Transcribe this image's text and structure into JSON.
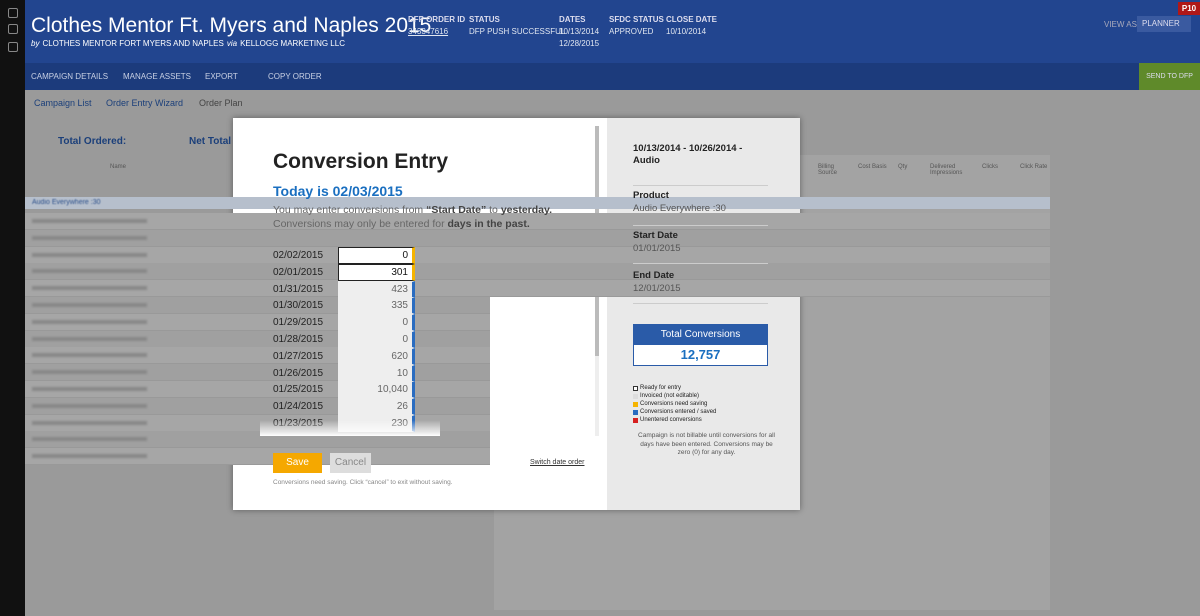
{
  "header": {
    "title": "Clothes Mentor Ft. Myers and Naples 2015",
    "by": "by",
    "org": "CLOTHES MENTOR FORT MYERS AND NAPLES",
    "via": "via",
    "agency": "KELLOGG MARKETING LLC",
    "meta": [
      {
        "label": "DFP ORDER ID",
        "lines": [
          "343347616"
        ]
      },
      {
        "label": "STATUS",
        "lines": [
          "DFP PUSH SUCCESSFUL"
        ]
      },
      {
        "label": "DATES",
        "lines": [
          "10/13/2014",
          "12/28/2015"
        ]
      },
      {
        "label": "SFDC STATUS",
        "lines": [
          "APPROVED"
        ]
      },
      {
        "label": "CLOSE DATE",
        "lines": [
          "10/10/2014"
        ]
      }
    ],
    "view_as": "VIEW AS",
    "role": "PLANNER",
    "badge": "P10"
  },
  "toolbar": {
    "items": [
      "CAMPAIGN DETAILS",
      "MANAGE ASSETS",
      "EXPORT",
      "COPY ORDER"
    ],
    "send": "SEND TO DFP"
  },
  "breadcrumb": [
    "Campaign List",
    "Order Entry Wizard",
    "Order Plan"
  ],
  "background": {
    "total_ordered": "Total Ordered:",
    "net_total": "Net Total",
    "columns": [
      "Name",
      "Billing Source",
      "Cost Basis",
      "Qty",
      "Delivered Impressions",
      "Clicks",
      "Click Rate"
    ],
    "group": "Audio Everywhere :30"
  },
  "modal": {
    "title": "Conversion Entry",
    "today": "Today is 02/03/2015",
    "instructions": [
      {
        "text": "You may enter conversions from ",
        "bold": false
      },
      {
        "text": "“Start Date”",
        "bold": true
      },
      {
        "text": " to ",
        "bold": false
      },
      {
        "text": "yesterday.",
        "bold": true
      },
      {
        "text": " Conversions may only be entered for ",
        "bold": false
      },
      {
        "text": "days in the past.",
        "bold": true
      }
    ],
    "entries": [
      {
        "date": "02/02/2015",
        "value": "0",
        "state": "unsaved"
      },
      {
        "date": "02/01/2015",
        "value": "301",
        "state": "unsaved"
      },
      {
        "date": "01/31/2015",
        "value": "423",
        "state": "saved"
      },
      {
        "date": "01/30/2015",
        "value": "335",
        "state": "saved"
      },
      {
        "date": "01/29/2015",
        "value": "0",
        "state": "saved"
      },
      {
        "date": "01/28/2015",
        "value": "0",
        "state": "saved"
      },
      {
        "date": "01/27/2015",
        "value": "620",
        "state": "saved"
      },
      {
        "date": "01/26/2015",
        "value": "10",
        "state": "saved"
      },
      {
        "date": "01/25/2015",
        "value": "10,040",
        "state": "saved"
      },
      {
        "date": "01/24/2015",
        "value": "26",
        "state": "saved"
      },
      {
        "date": "01/23/2015",
        "value": "230",
        "state": "saved"
      }
    ],
    "save": "Save",
    "cancel": "Cancel",
    "switch": "Switch date order",
    "note": "Conversions need saving. Click “cancel” to exit without saving.",
    "side": {
      "heading": "10/13/2014 - 10/26/2014 - Audio",
      "fields": [
        {
          "label": "Product",
          "value": "Audio Everywhere :30"
        },
        {
          "label": "Start Date",
          "value": "01/01/2015"
        },
        {
          "label": "End Date",
          "value": "12/01/2015"
        }
      ],
      "total_label": "Total Conversions",
      "total_value": "12,757",
      "legend": [
        {
          "text": "Ready for entry",
          "color": "#ffffff"
        },
        {
          "text": "Invoiced (not editable)",
          "color": "#dddddd"
        },
        {
          "text": "Conversions need saving",
          "color": "#f5b400"
        },
        {
          "text": "Conversions entered / saved",
          "color": "#2a6cc0"
        },
        {
          "text": "Unentered conversions",
          "color": "#d62020"
        }
      ],
      "note": "Campaign is not billable until conversions for all days have been entered. Conversions may be zero (0) for any day."
    }
  }
}
